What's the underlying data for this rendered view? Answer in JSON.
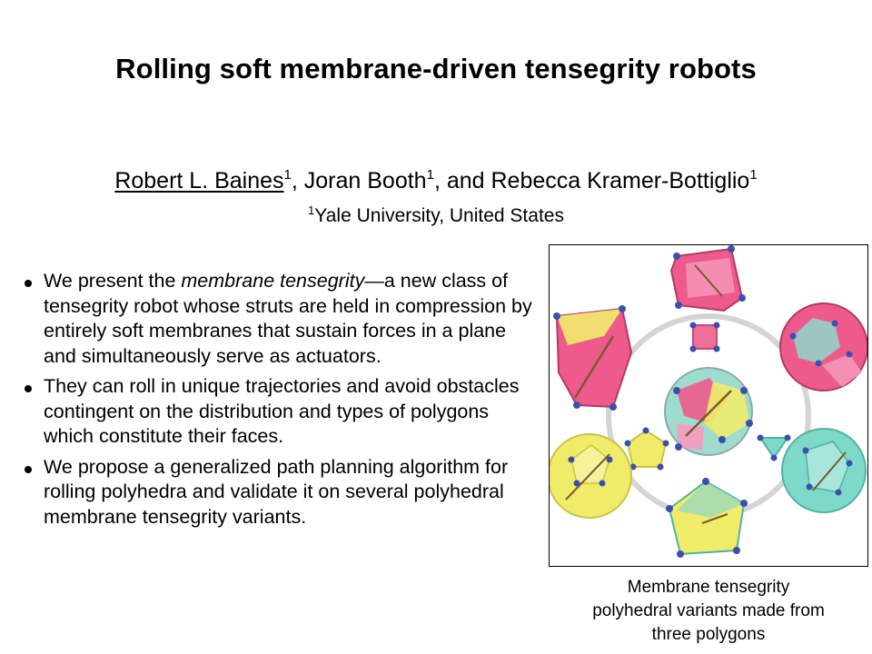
{
  "slide": {
    "title": "Rolling soft membrane-driven tensegrity robots",
    "authors": {
      "first": "Robert L. Baines",
      "sep1": ", Joran Booth",
      "sep2": ", and Rebecca Kramer-Bottiglio",
      "sup": "1"
    },
    "affiliation": {
      "sup": "1",
      "text": "Yale University, United States"
    },
    "bullets": [
      {
        "pre": "We present the ",
        "em": "membrane tensegrity",
        "post": "—a new class of tensegrity robot whose struts are held in compression by entirely soft membranes that sustain forces in a plane and simultaneously serve as actuators."
      },
      {
        "text": "They can roll in unique trajectories and avoid obstacles contingent on the distribution and types of polygons which constitute their faces."
      },
      {
        "text": "We propose a generalized path planning algorithm for rolling polyhedra and validate it on several polyhedral membrane tensegrity variants."
      }
    ],
    "figure": {
      "caption_lines": [
        "Membrane tensegrity",
        "polyhedral variants made from",
        "three polygons"
      ],
      "colors": {
        "pink": "#ee5a8c",
        "yellow": "#f0ec6a",
        "teal": "#7fd9c8",
        "ring": "#d4d4d4",
        "node": "#3a4fb0"
      }
    }
  }
}
